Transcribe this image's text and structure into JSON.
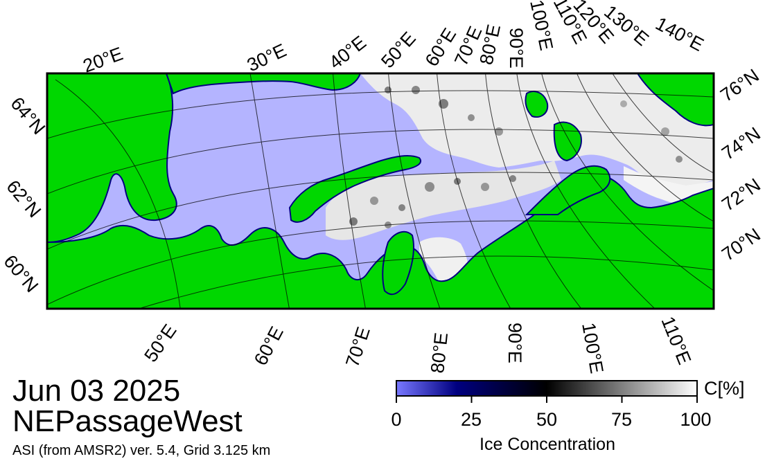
{
  "header": {
    "date": "Jun 03 2025",
    "region": "NEPassageWest",
    "source": "ASI (from AMSR2) ver. 5.4,  Grid 3.125 km"
  },
  "map": {
    "top_longitude_labels": [
      "20°E",
      "30°E",
      "40°E",
      "50°E",
      "60°E",
      "70°E",
      "80°E",
      "90°E",
      "100°E",
      "110°E",
      "120°E",
      "130°E",
      "140°E"
    ],
    "bottom_longitude_labels": [
      "50°E",
      "60°E",
      "70°E",
      "80°E",
      "90°E",
      "100°E",
      "110°E"
    ],
    "left_latitude_labels": [
      "64°N",
      "62°N",
      "60°N"
    ],
    "right_latitude_labels": [
      "76°N",
      "74°N",
      "72°N",
      "70°N"
    ],
    "colors": {
      "land": "#00d700",
      "open_water": "#b4b4ff",
      "coast_dark": "#000080",
      "ice": "#ffffff",
      "land_noise": "#969696"
    }
  },
  "colorbar": {
    "tick_labels": [
      "0",
      "25",
      "50",
      "75",
      "100"
    ],
    "ticks": [
      0,
      25,
      50,
      75,
      100
    ],
    "unit": "C[%]",
    "title": "Ice Concentration",
    "stops": [
      {
        "value": 0,
        "color": "#7878ff"
      },
      {
        "value": 20,
        "color": "#000080"
      },
      {
        "value": 50,
        "color": "#000000"
      },
      {
        "value": 100,
        "color": "#ffffff"
      }
    ]
  }
}
